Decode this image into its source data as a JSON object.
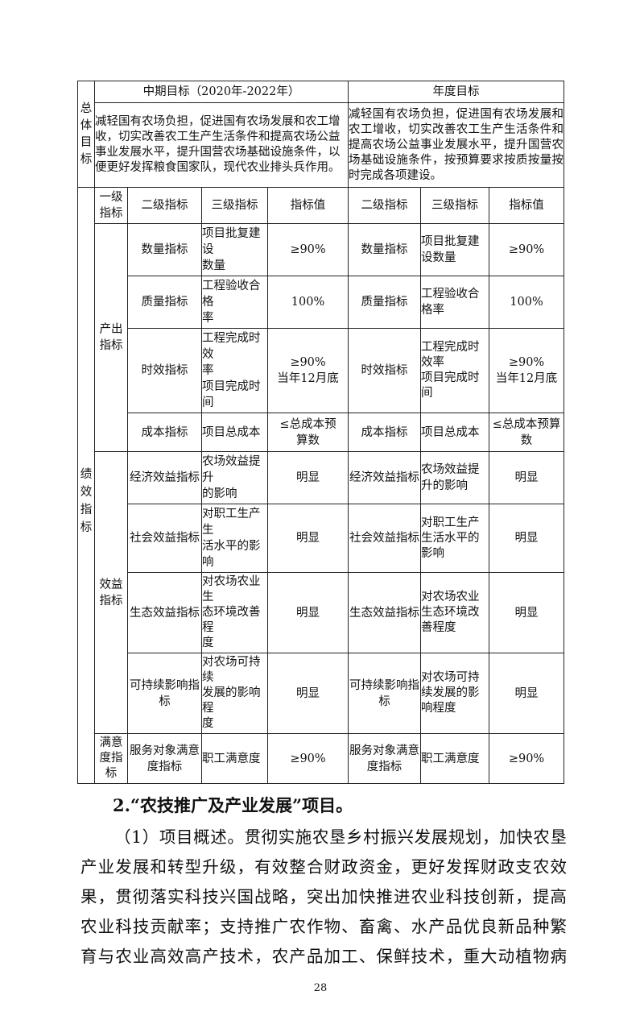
{
  "table": {
    "overall_label": "总\n体\n目\n标",
    "mid_title": "中期目标（2020年-2022年）",
    "year_title": "年度目标",
    "mid_goal": "减轻国有农场负担，促进国有农场发展和农工增收，切实改善农工生产生活条件和提高农场公益事业发展水平，提升国营农场基础设施条件，以便更好发挥粮食国家队，现代农业排头兵作用。",
    "year_goal": "减轻国有农场负担，促进国有农场发展和农工增收，切实改善农工生产生活条件和提高农场公益事业发展水平，提升国营农场基础设施条件，按预算要求按质按量按时完成各项建设。",
    "perf_label": "绩\n效\n指\n标",
    "headers": [
      "一级\n指标",
      "二级指标",
      "三级指标",
      "指标值",
      "二级指标",
      "三级指标",
      "指标值"
    ],
    "groups": [
      {
        "label": "产出\n指标"
      },
      {
        "label": "效益\n指标"
      },
      {
        "label": "满意\n度指\n标"
      }
    ],
    "rows": [
      [
        "数量指标",
        "项目批复建设\n数量",
        "≥90%",
        "数量指标",
        "项目批复建\n设数量",
        "≥90%"
      ],
      [
        "质量指标",
        "工程验收合格\n率",
        "100%",
        "质量指标",
        "工程验收合\n格率",
        "100%"
      ],
      [
        "时效指标",
        "工程完成时效\n率\n项目完成时间",
        "≥90%\n当年12月底",
        "时效指标",
        "工程完成时\n效率\n项目完成时\n间",
        "≥90%\n当年12月底"
      ],
      [
        "成本指标",
        "项目总成本",
        "≤总成本预\n算数",
        "成本指标",
        "项目总成本",
        "≤总成本预算\n数"
      ],
      [
        "经济效益指标",
        "农场效益提升\n的影响",
        "明显",
        "经济效益指标",
        "农场效益提\n升的影响",
        "明显"
      ],
      [
        "社会效益指标",
        "对职工生产生\n活水平的影响",
        "明显",
        "社会效益指标",
        "对职工生产\n生活水平的\n影响",
        "明显"
      ],
      [
        "生态效益指标",
        "对农场农业生\n态环境改善程\n度",
        "明显",
        "生态效益指标",
        "对农场农业\n生态环境改\n善程度",
        "明显"
      ],
      [
        "可持续影响指\n标",
        "对农场可持续\n发展的影响程\n度",
        "明显",
        "可持续影响指\n标",
        "对农场可持\n续发展的影\n响程度",
        "明显"
      ],
      [
        "服务对象满意\n度指标",
        "职工满意度",
        "≥90%",
        "服务对象满意\n度指标",
        "职工满意度",
        "≥90%"
      ]
    ]
  },
  "section_heading": "2.“农技推广及产业发展”项目。",
  "paragraph_lines": [
    "（1）项目概述。贯彻实施农垦乡村振兴发展规划，加快农垦",
    "产业发展和转型升级，有效整合财政资金，更好发挥财政支农效",
    "果，贯彻落实科技兴国战略，突出加快推进农业科技创新，提高",
    "农业科技贡献率；支持推广农作物、畜禽、水产品优良新品种繁",
    "育与农业高效高产技术，农产品加工、保鲜技术，重大动植物病"
  ],
  "page_number": "28"
}
